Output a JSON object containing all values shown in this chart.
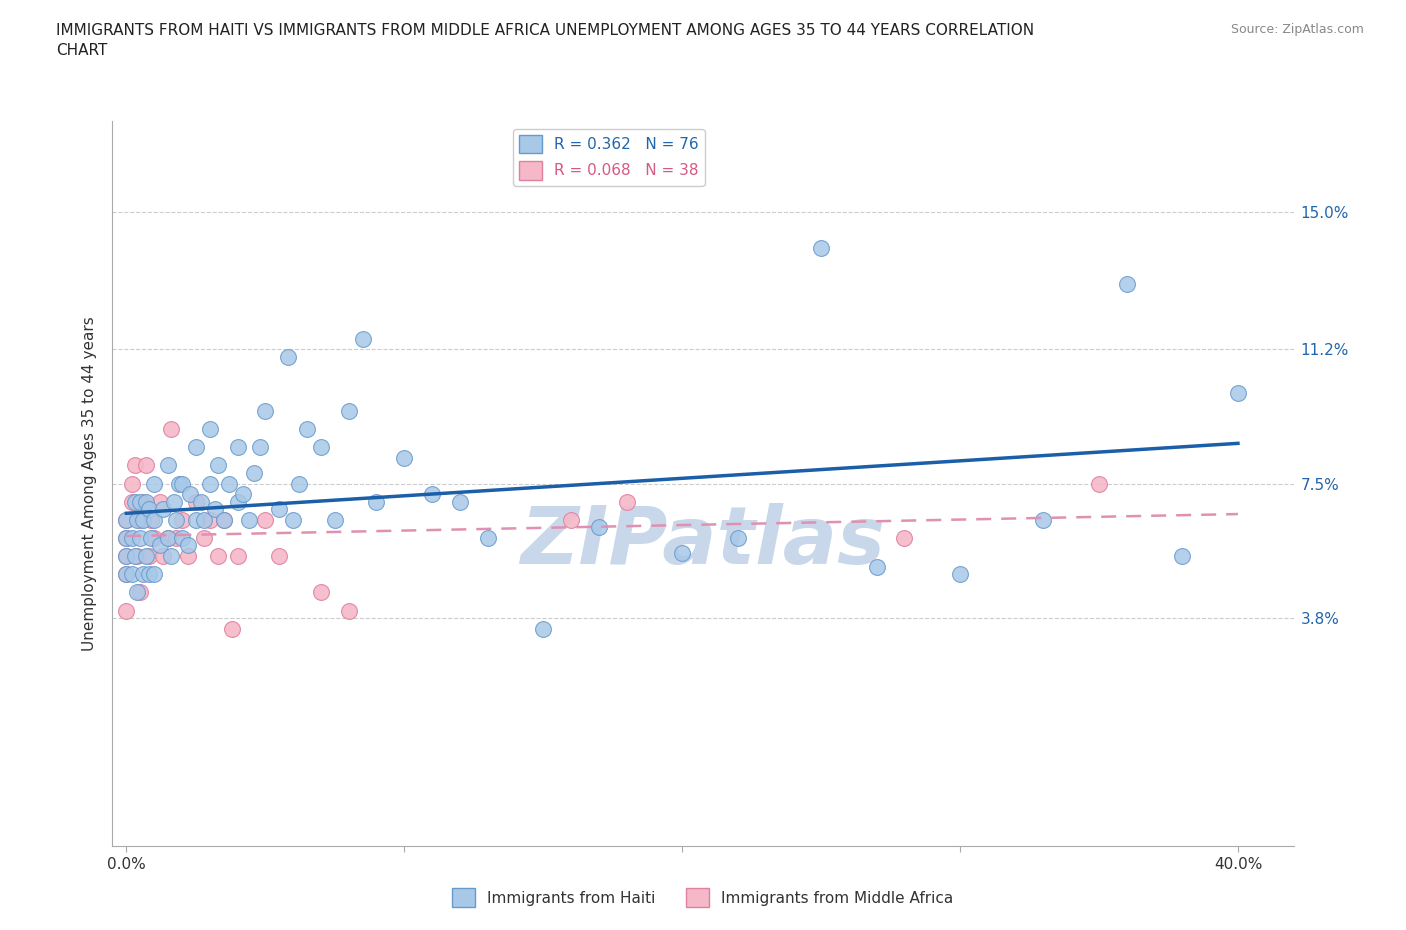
{
  "title": "IMMIGRANTS FROM HAITI VS IMMIGRANTS FROM MIDDLE AFRICA UNEMPLOYMENT AMONG AGES 35 TO 44 YEARS CORRELATION\nCHART",
  "source_text": "Source: ZipAtlas.com",
  "ylabel": "Unemployment Among Ages 35 to 44 years",
  "xlim": [
    -0.005,
    0.42
  ],
  "ylim": [
    -0.025,
    0.175
  ],
  "xticks": [
    0.0,
    0.1,
    0.2,
    0.3,
    0.4
  ],
  "xticklabels": [
    "0.0%",
    "",
    "",
    "",
    "40.0%"
  ],
  "ytick_positions": [
    0.038,
    0.075,
    0.112,
    0.15
  ],
  "ytick_labels": [
    "3.8%",
    "7.5%",
    "11.2%",
    "15.0%"
  ],
  "haiti_color": "#a8c8e8",
  "haiti_edge_color": "#6699cc",
  "middle_africa_color": "#f5b8c8",
  "middle_africa_edge_color": "#e080a0",
  "haiti_line_color": "#1a5fa8",
  "middle_africa_line_color": "#d45a80",
  "middle_africa_dash_color": "#e090b0",
  "grid_color": "#cccccc",
  "watermark_color": "#c8d8ea",
  "R_haiti": 0.362,
  "N_haiti": 76,
  "R_middle_africa": 0.068,
  "N_middle_africa": 38,
  "haiti_x": [
    0.0,
    0.0,
    0.0,
    0.0,
    0.002,
    0.002,
    0.003,
    0.003,
    0.004,
    0.004,
    0.005,
    0.005,
    0.006,
    0.006,
    0.007,
    0.007,
    0.008,
    0.008,
    0.009,
    0.01,
    0.01,
    0.01,
    0.012,
    0.013,
    0.015,
    0.015,
    0.016,
    0.017,
    0.018,
    0.019,
    0.02,
    0.02,
    0.022,
    0.023,
    0.025,
    0.025,
    0.027,
    0.028,
    0.03,
    0.03,
    0.032,
    0.033,
    0.035,
    0.037,
    0.04,
    0.04,
    0.042,
    0.044,
    0.046,
    0.048,
    0.05,
    0.055,
    0.058,
    0.06,
    0.062,
    0.065,
    0.07,
    0.075,
    0.08,
    0.085,
    0.09,
    0.1,
    0.11,
    0.12,
    0.13,
    0.15,
    0.17,
    0.2,
    0.22,
    0.25,
    0.27,
    0.3,
    0.33,
    0.36,
    0.38,
    0.4
  ],
  "haiti_y": [
    0.05,
    0.055,
    0.06,
    0.065,
    0.05,
    0.06,
    0.055,
    0.07,
    0.045,
    0.065,
    0.06,
    0.07,
    0.05,
    0.065,
    0.055,
    0.07,
    0.05,
    0.068,
    0.06,
    0.05,
    0.065,
    0.075,
    0.058,
    0.068,
    0.06,
    0.08,
    0.055,
    0.07,
    0.065,
    0.075,
    0.06,
    0.075,
    0.058,
    0.072,
    0.065,
    0.085,
    0.07,
    0.065,
    0.075,
    0.09,
    0.068,
    0.08,
    0.065,
    0.075,
    0.07,
    0.085,
    0.072,
    0.065,
    0.078,
    0.085,
    0.095,
    0.068,
    0.11,
    0.065,
    0.075,
    0.09,
    0.085,
    0.065,
    0.095,
    0.115,
    0.07,
    0.082,
    0.072,
    0.07,
    0.06,
    0.035,
    0.063,
    0.056,
    0.06,
    0.14,
    0.052,
    0.05,
    0.065,
    0.13,
    0.055,
    0.1
  ],
  "middle_africa_x": [
    0.0,
    0.0,
    0.0,
    0.0,
    0.0,
    0.002,
    0.002,
    0.003,
    0.004,
    0.005,
    0.005,
    0.006,
    0.007,
    0.008,
    0.009,
    0.01,
    0.012,
    0.013,
    0.015,
    0.016,
    0.018,
    0.02,
    0.022,
    0.025,
    0.028,
    0.03,
    0.033,
    0.035,
    0.038,
    0.04,
    0.05,
    0.055,
    0.07,
    0.08,
    0.16,
    0.18,
    0.28,
    0.35
  ],
  "middle_africa_y": [
    0.04,
    0.05,
    0.055,
    0.06,
    0.065,
    0.07,
    0.075,
    0.08,
    0.055,
    0.045,
    0.065,
    0.07,
    0.08,
    0.055,
    0.065,
    0.06,
    0.07,
    0.055,
    0.06,
    0.09,
    0.06,
    0.065,
    0.055,
    0.07,
    0.06,
    0.065,
    0.055,
    0.065,
    0.035,
    0.055,
    0.065,
    0.055,
    0.045,
    0.04,
    0.065,
    0.07,
    0.06,
    0.075
  ],
  "background_color": "#ffffff"
}
